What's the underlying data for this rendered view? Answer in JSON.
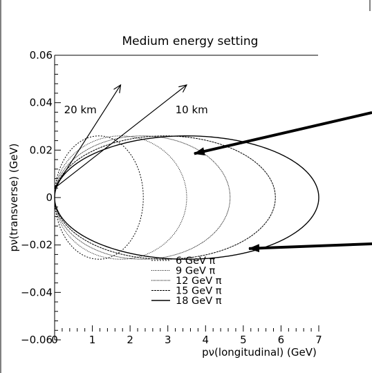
{
  "chart_data": {
    "type": "line",
    "title": "Medium energy setting",
    "xlabel": "pν(longitudinal) (GeV)",
    "ylabel": "pν(transverse) (GeV)",
    "xlim": [
      0,
      7
    ],
    "ylim": [
      -0.06,
      0.06
    ],
    "x_ticks": [
      "0",
      "1",
      "2",
      "3",
      "4",
      "5",
      "6",
      "7"
    ],
    "y_ticks": [
      "-0.06",
      "-0.04",
      "-0.02",
      "0",
      "0.02",
      "0.04",
      "0.06"
    ],
    "grid": false,
    "legend_position": "bottom-center",
    "series": [
      {
        "name": "6 GeV π",
        "pion_energy": 6,
        "max_pl": 2.35,
        "max_pt": 0.026,
        "peak_pl": 1.15,
        "dash": "2,2"
      },
      {
        "name": "9 GeV π",
        "pion_energy": 9,
        "max_pl": 3.5,
        "max_pt": 0.026,
        "peak_pl": 1.75,
        "dash": "1,1.5"
      },
      {
        "name": "12 GeV π",
        "pion_energy": 12,
        "max_pl": 4.65,
        "max_pt": 0.026,
        "peak_pl": 2.3,
        "dash": "1,1"
      },
      {
        "name": "15 GeV π",
        "pion_energy": 15,
        "max_pl": 5.85,
        "max_pt": 0.026,
        "peak_pl": 2.9,
        "dash": "3,1"
      },
      {
        "name": "18 GeV π",
        "pion_energy": 18,
        "max_pl": 7.0,
        "max_pt": 0.026,
        "peak_pl": 3.5,
        "dash": ""
      }
    ],
    "annotations": [
      {
        "text": "20 km",
        "kind": "ray",
        "x_end": 1.75,
        "y_end": 0.0475
      },
      {
        "text": "10 km",
        "kind": "ray",
        "x_end": 3.5,
        "y_end": 0.0475
      }
    ],
    "pointer_arrows": [
      {
        "x_tip": 3.7,
        "y_tip": 0.0185
      },
      {
        "x_tip": 5.15,
        "y_tip": -0.0215
      }
    ]
  }
}
